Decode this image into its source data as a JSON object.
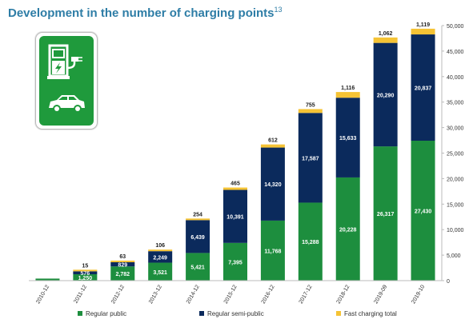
{
  "title": "Development in the number of charging points",
  "title_ref": "13",
  "icons": [
    "ev-charging-sign-icon"
  ],
  "colors": {
    "regular_public": "#1D8E3E",
    "regular_semi_public": "#0B2A5C",
    "fast_charging": "#F5C335",
    "title": "#2E7DA6"
  },
  "chart_data": {
    "type": "bar",
    "stacked": true,
    "categories": [
      "2010-12",
      "2011-12",
      "2012-12",
      "2013-12",
      "2014-12",
      "2015-12",
      "2016-12",
      "2017-12",
      "2018-12",
      "2019-09",
      "2019-10"
    ],
    "series": [
      {
        "name": "Regular public",
        "color": "#1D8E3E",
        "values": [
          400,
          1250,
          2782,
          3521,
          5421,
          7395,
          11768,
          15288,
          20228,
          26317,
          27430
        ],
        "labels": [
          "",
          "1,250",
          "2,782",
          "3,521",
          "5,421",
          "7,395",
          "11,768",
          "15,288",
          "20,228",
          "26,317",
          "27,430"
        ]
      },
      {
        "name": "Regular semi-public",
        "color": "#0B2A5C",
        "values": [
          0,
          576,
          829,
          2249,
          6439,
          10391,
          14320,
          17587,
          15633,
          20290,
          20837
        ],
        "labels": [
          "",
          "576",
          "829",
          "2,249",
          "6,439",
          "10,391",
          "14,320",
          "17,587",
          "15,633",
          "20,290",
          "20,837"
        ]
      },
      {
        "name": "Fast charging total",
        "color": "#F5C335",
        "values": [
          0,
          15,
          63,
          106,
          254,
          465,
          612,
          755,
          1116,
          1062,
          1119
        ],
        "labels": [
          "",
          "15",
          "63",
          "106",
          "254",
          "465",
          "612",
          "755",
          "1,116",
          "1,062",
          "1,119"
        ]
      }
    ],
    "yaxis": {
      "position": "right",
      "min": 0,
      "max": 50000,
      "ticks": [
        0,
        5000,
        10000,
        15000,
        20000,
        25000,
        30000,
        35000,
        40000,
        45000,
        50000
      ],
      "tick_labels": [
        "0",
        "5,000",
        "10,000",
        "15,000",
        "20,000",
        "25,000",
        "30,000",
        "35,000",
        "40,000",
        "45,000",
        "50,000"
      ]
    },
    "grid": false,
    "legend_position": "bottom"
  }
}
